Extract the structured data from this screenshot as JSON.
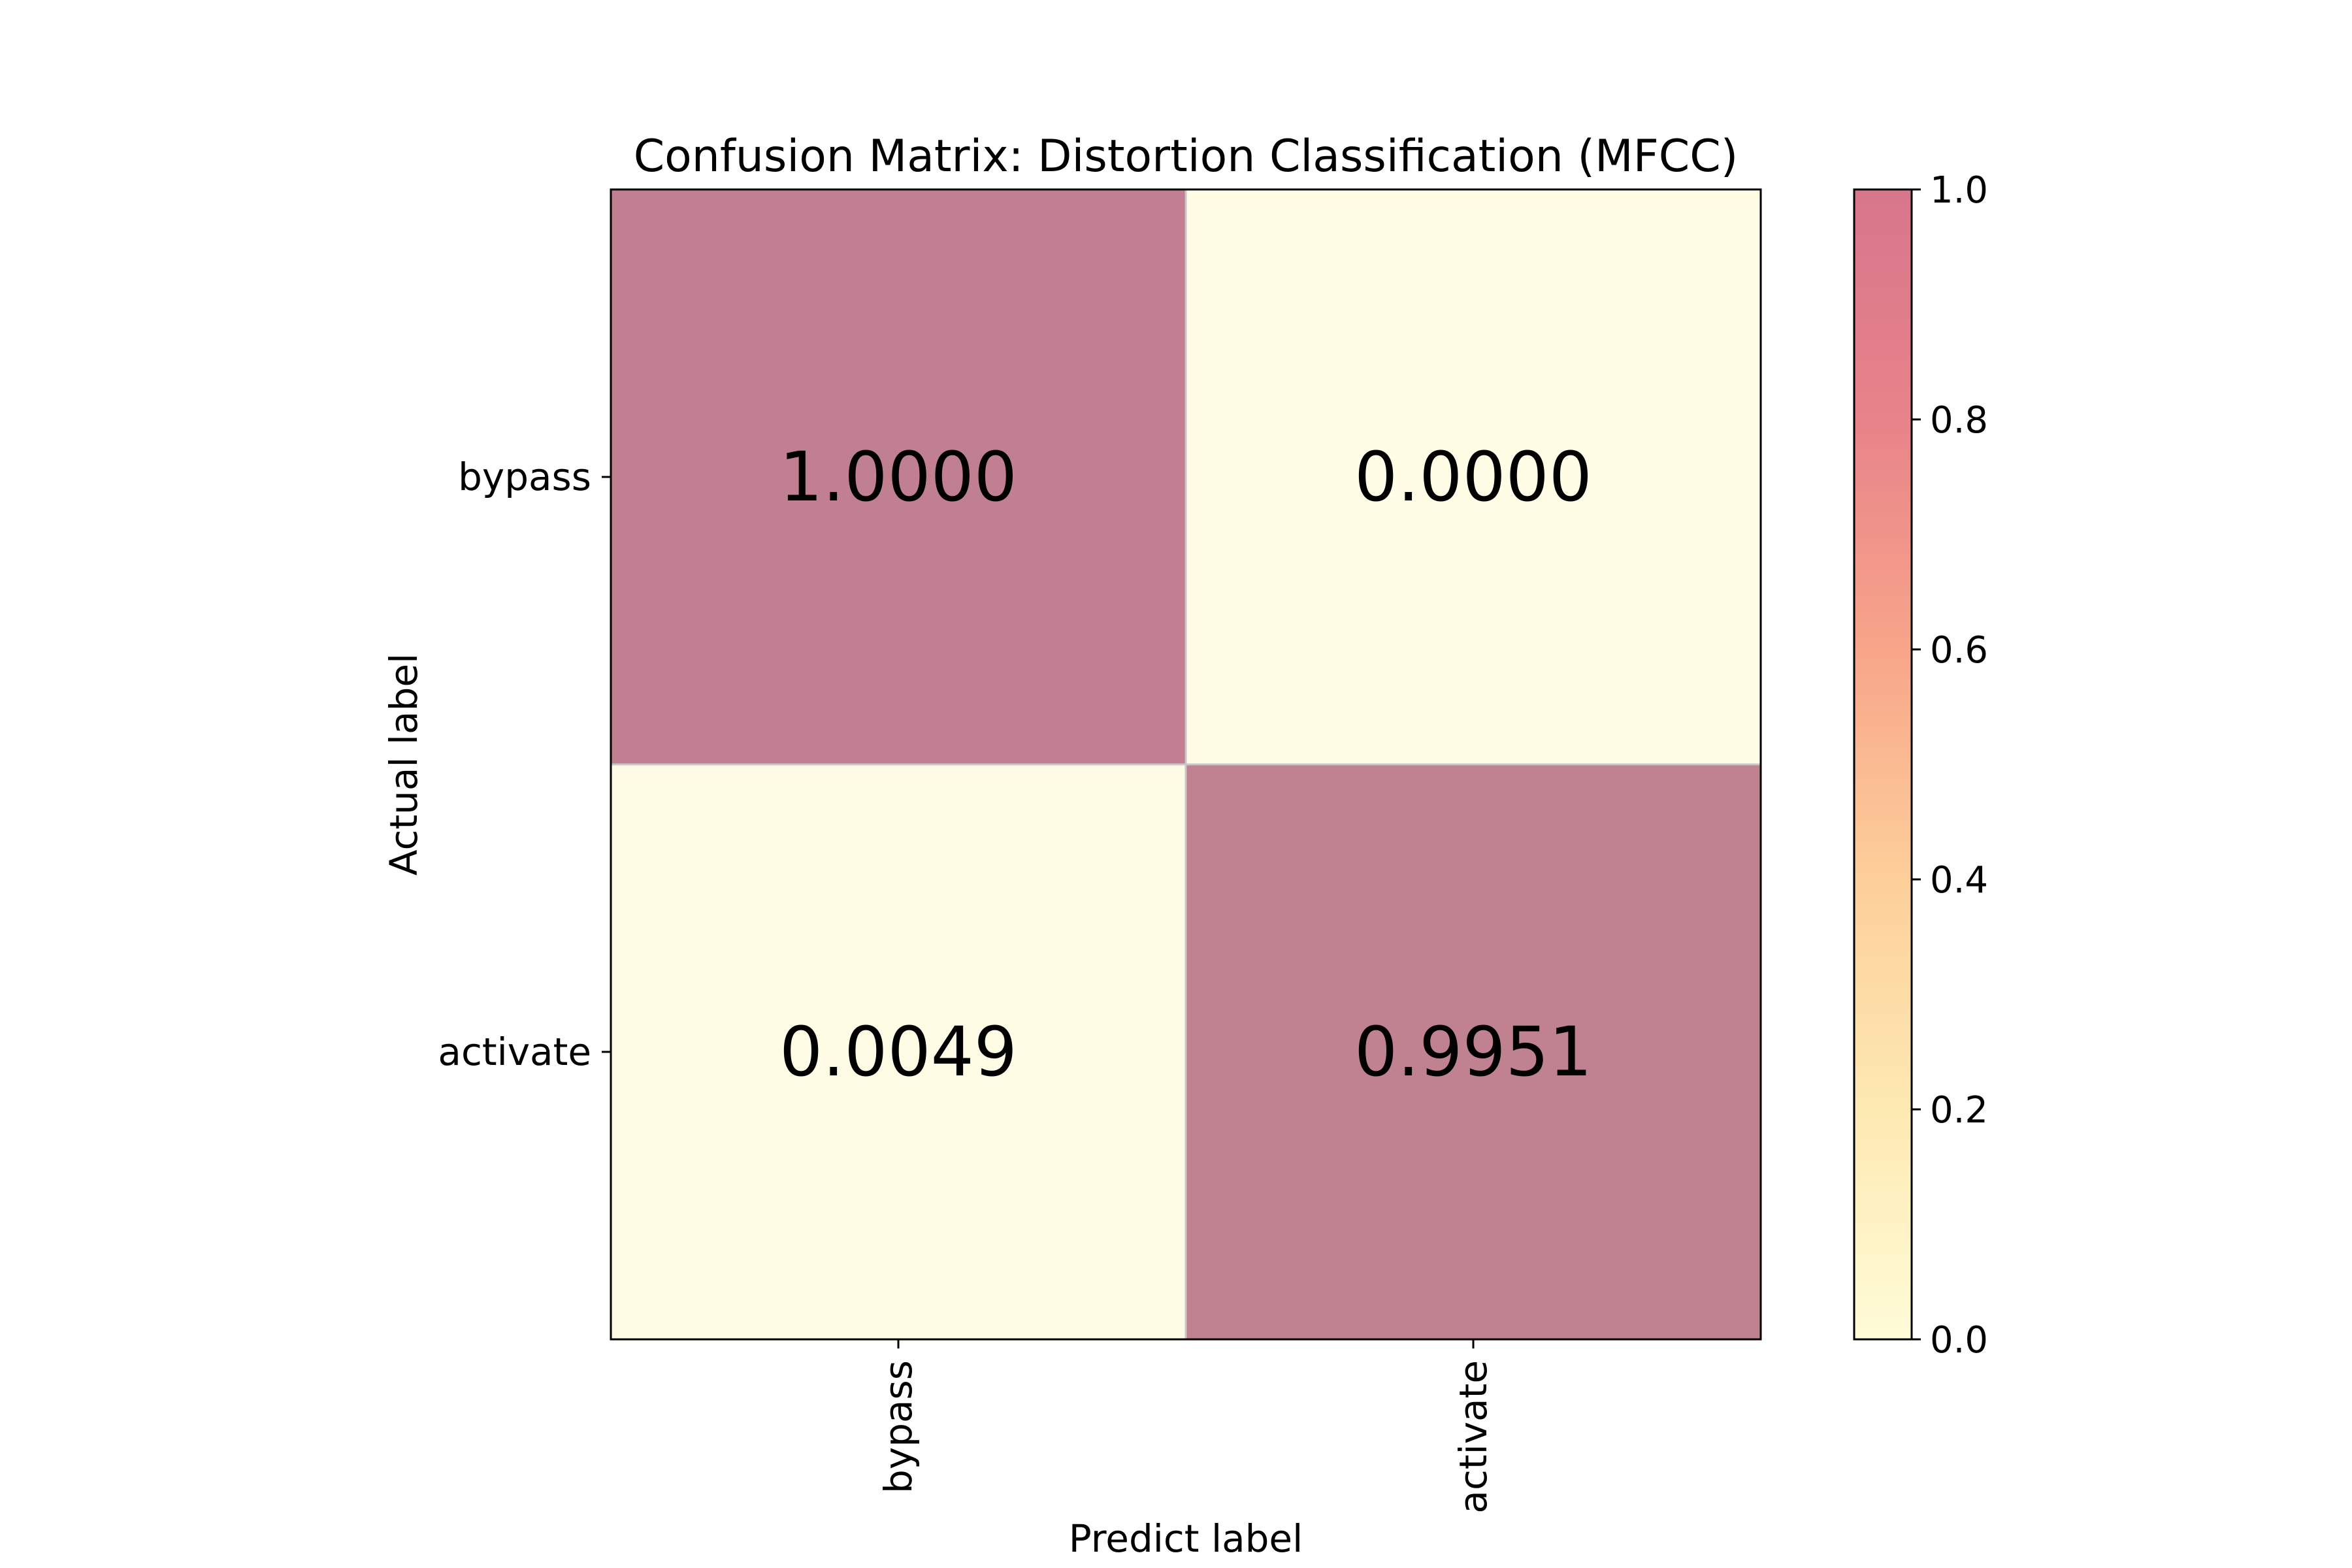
{
  "chart_data": {
    "type": "heatmap",
    "title": "Confusion Matrix: Distortion Classification (MFCC)",
    "xlabel": "Predict label",
    "ylabel": "Actual label",
    "x_categories": [
      "bypass",
      "activate"
    ],
    "y_categories": [
      "bypass",
      "activate"
    ],
    "values": [
      [
        1.0,
        0.0
      ],
      [
        0.0049,
        0.9951
      ]
    ],
    "value_labels": [
      [
        "1.0000",
        "0.0000"
      ],
      [
        "0.0049",
        "0.9951"
      ]
    ],
    "colorbar": {
      "range": [
        0.0,
        1.0
      ],
      "ticks": [
        0.0,
        0.2,
        0.4,
        0.6,
        0.8,
        1.0
      ],
      "tick_labels": [
        "0.0",
        "0.2",
        "0.4",
        "0.6",
        "0.8",
        "1.0"
      ]
    },
    "colormap": [
      "#fffcd8",
      "#fde9b2",
      "#fdcf9a",
      "#f8a58a",
      "#e8838a",
      "#d8768c"
    ],
    "cell_colors": {
      "low": "#fffde6",
      "high": "#c08091"
    },
    "grid": false
  }
}
